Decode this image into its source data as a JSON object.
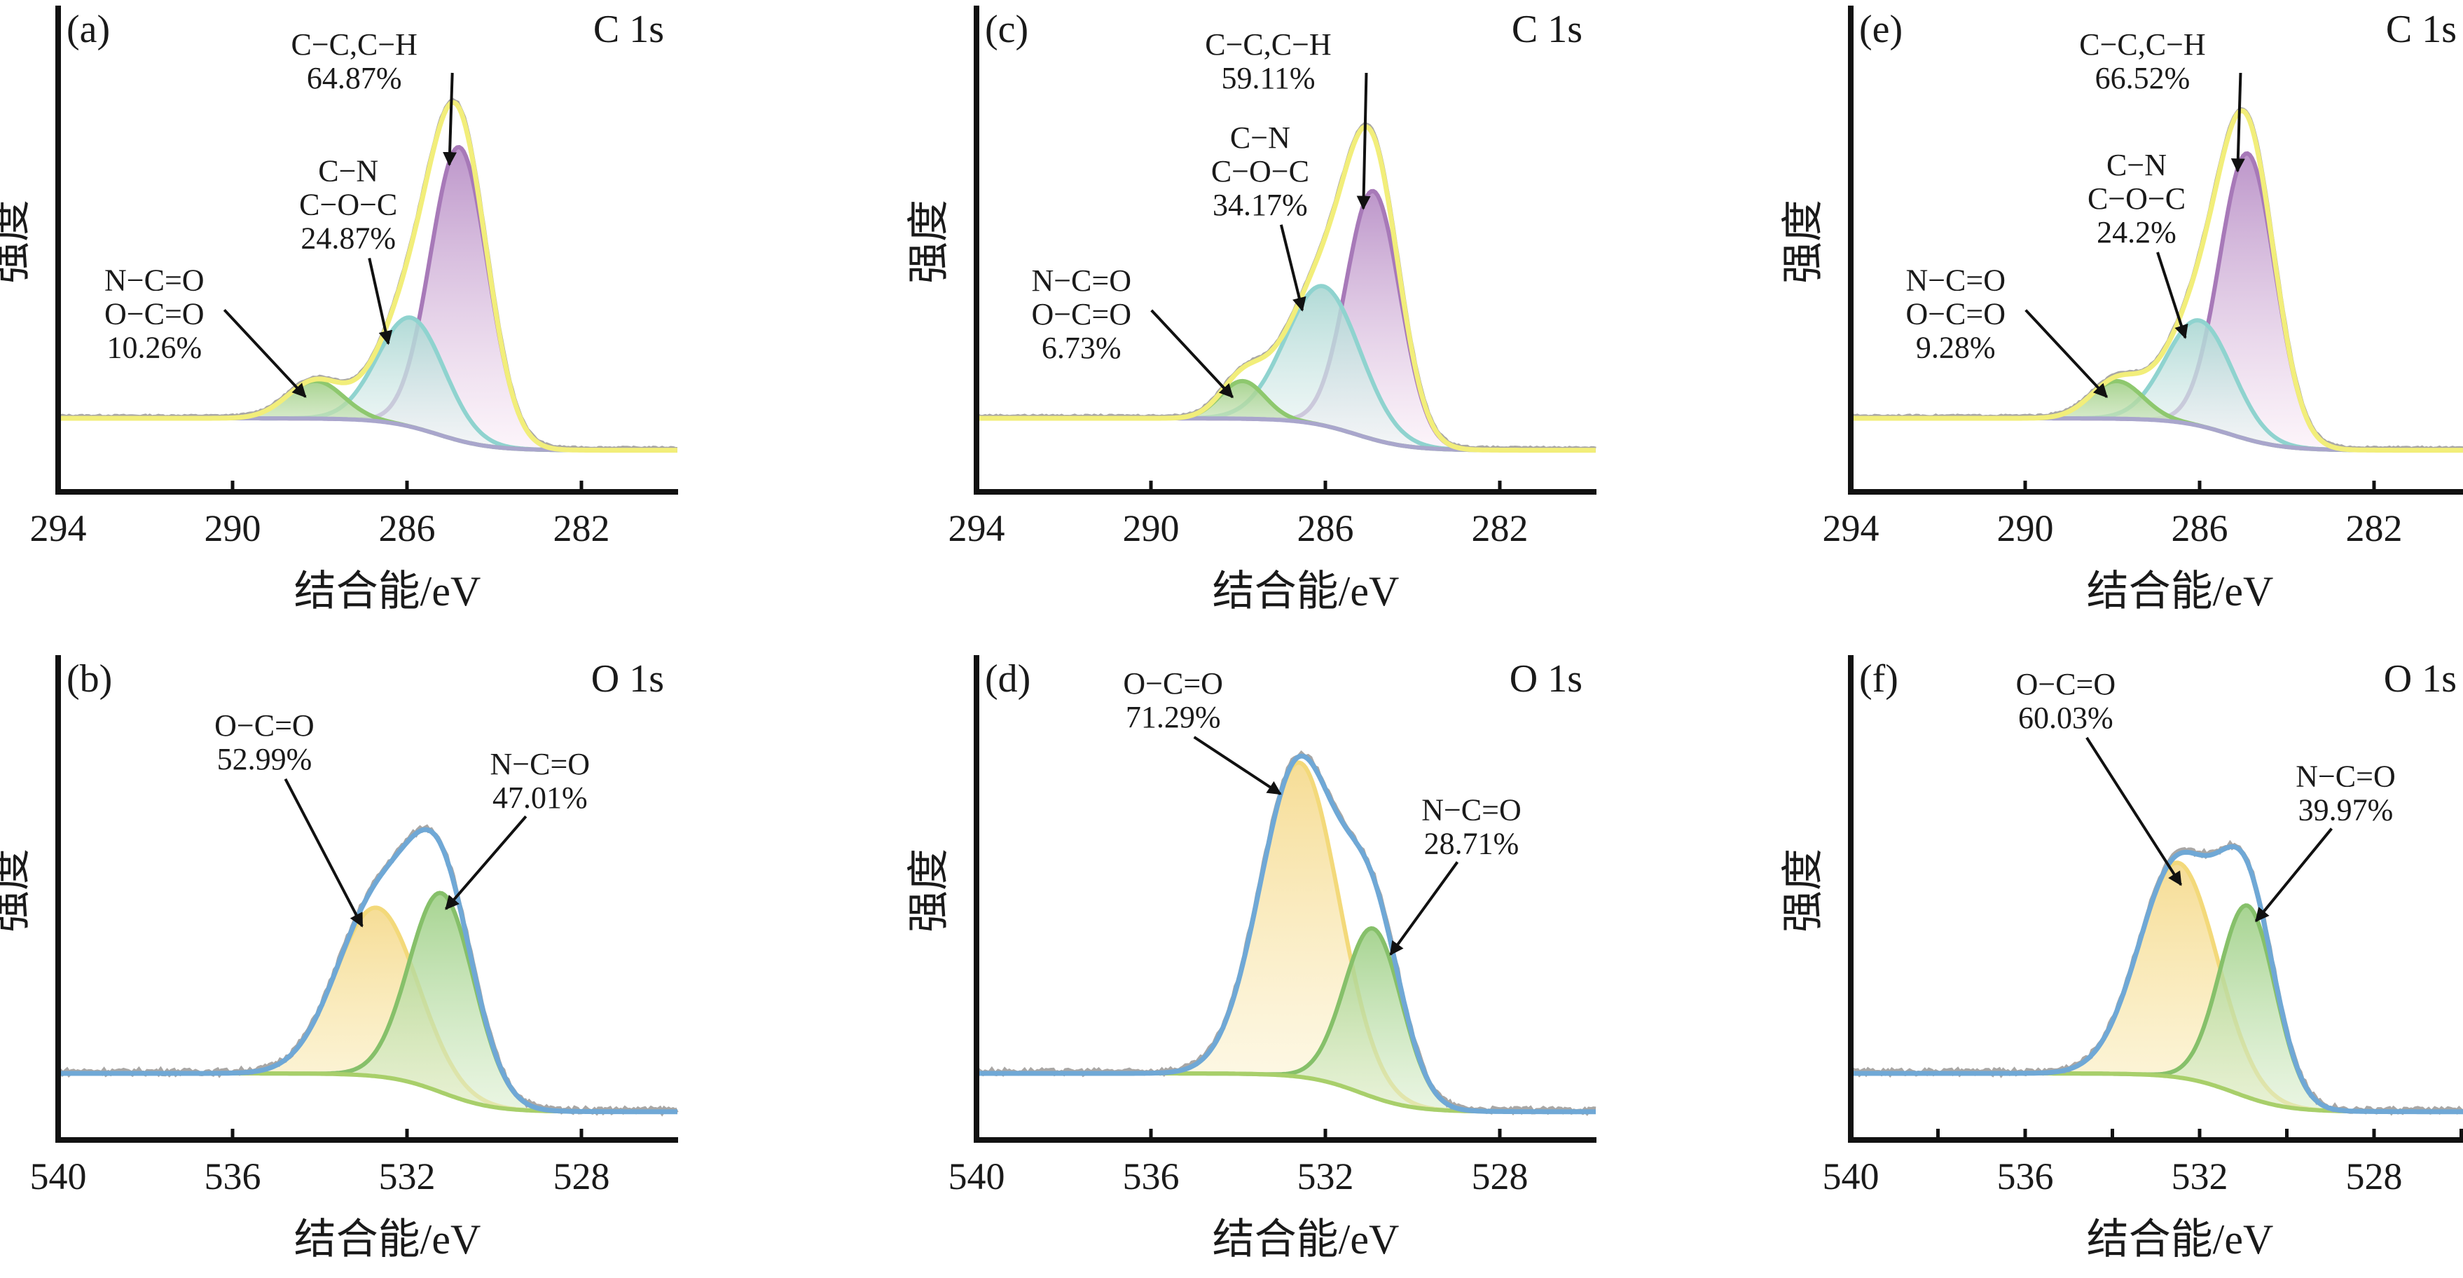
{
  "figure": {
    "ylabel": "强度",
    "xlabel": "结合能/eV"
  },
  "chart_data": [
    {
      "panel": "(a)",
      "type": "area",
      "region": "C 1s",
      "xlabel": "结合能/eV",
      "ylabel": "强度",
      "xlim": [
        294,
        279.8
      ],
      "xticks": [
        294,
        290,
        286,
        282
      ],
      "minor_ticks": false,
      "total_envelope_color": "#f2ee7a",
      "components": [
        {
          "label_lines": [
            "C−C,C−H",
            "64.87%"
          ],
          "percent": 64.87,
          "center": 284.8,
          "height": 0.78,
          "fwhm": 1.55,
          "color": "#a779b8",
          "fill_top": "#b58ac4",
          "fill_bottom": "#fbeef7",
          "label_pos": "top",
          "arrow_to": 284.9
        },
        {
          "label_lines": [
            "C−N",
            "C−O−C",
            "24.87%"
          ],
          "percent": 24.87,
          "center": 285.9,
          "height": 0.29,
          "fwhm": 1.8,
          "color": "#8fd3cf",
          "fill_top": "#a9d6d2",
          "fill_bottom": "#f0f7f6",
          "label_pos": "mid",
          "arrow_to": 286.3
        },
        {
          "label_lines": [
            "N−C=O",
            "O−C=O",
            "10.26%"
          ],
          "percent": 10.26,
          "center": 288.1,
          "height": 0.1,
          "fwhm": 1.5,
          "color": "#8ec86e",
          "fill_top": "#9fcf85",
          "fill_bottom": "#e9f3df",
          "label_pos": "left",
          "arrow_to": 288.2
        }
      ]
    },
    {
      "panel": "(b)",
      "type": "area",
      "region": "O 1s",
      "xlabel": "结合能/eV",
      "ylabel": "强度",
      "xlim": [
        540,
        525.8
      ],
      "xticks": [
        540,
        536,
        532,
        528
      ],
      "minor_ticks": false,
      "total_envelope_color": "#6fa8d6",
      "components": [
        {
          "label_lines": [
            "O−C=O",
            "52.99%"
          ],
          "percent": 52.99,
          "center": 532.7,
          "height": 0.44,
          "fwhm": 2.2,
          "color": "#f3d97a",
          "fill_top": "#f5d98a",
          "fill_bottom": "#fbf1c8",
          "label_pos": "left",
          "arrow_to": 532.9
        },
        {
          "label_lines": [
            "N−C=O",
            "47.01%"
          ],
          "percent": 47.01,
          "center": 531.2,
          "height": 0.52,
          "fwhm": 1.75,
          "color": "#86c06a",
          "fill_top": "#9dcf85",
          "fill_bottom": "#dcefd0",
          "label_pos": "right",
          "arrow_to": 531.3
        }
      ]
    },
    {
      "panel": "(c)",
      "type": "area",
      "region": "C 1s",
      "xlabel": "结合能/eV",
      "ylabel": "强度",
      "xlim": [
        294,
        279.8
      ],
      "xticks": [
        294,
        290,
        286,
        282
      ],
      "minor_ticks": false,
      "total_envelope_color": "#f2ee7a",
      "components": [
        {
          "label_lines": [
            "C−C,C−H",
            "59.11%"
          ],
          "percent": 59.11,
          "center": 284.9,
          "height": 0.66,
          "fwhm": 1.45,
          "color": "#a779b8",
          "fill_top": "#b58ac4",
          "fill_bottom": "#fbeef7",
          "label_pos": "top",
          "arrow_to": 285.0
        },
        {
          "label_lines": [
            "C−N",
            "C−O−C",
            "34.17%"
          ],
          "percent": 34.17,
          "center": 286.05,
          "height": 0.37,
          "fwhm": 2.0,
          "color": "#8fd3cf",
          "fill_top": "#a9d6d2",
          "fill_bottom": "#f0f7f6",
          "label_pos": "mid",
          "arrow_to": 286.4
        },
        {
          "label_lines": [
            "N−C=O",
            "O−C=O",
            "6.73%"
          ],
          "percent": 6.73,
          "center": 287.9,
          "height": 0.1,
          "fwhm": 1.2,
          "color": "#8ec86e",
          "fill_top": "#9fcf85",
          "fill_bottom": "#e9f3df",
          "label_pos": "left",
          "arrow_to": 288.0
        }
      ]
    },
    {
      "panel": "(d)",
      "type": "area",
      "region": "O 1s",
      "xlabel": "结合能/eV",
      "ylabel": "强度",
      "xlim": [
        540,
        525.8
      ],
      "xticks": [
        540,
        536,
        532,
        528
      ],
      "minor_ticks": false,
      "total_envelope_color": "#6fa8d6",
      "components": [
        {
          "label_lines": [
            "O−C=O",
            "71.29%"
          ],
          "percent": 71.29,
          "center": 532.6,
          "height": 0.82,
          "fwhm": 2.1,
          "color": "#f3d97a",
          "fill_top": "#f5d98a",
          "fill_bottom": "#fdf6dc",
          "label_pos": "top-left",
          "arrow_to": 532.9
        },
        {
          "label_lines": [
            "N−C=O",
            "28.71%"
          ],
          "percent": 28.71,
          "center": 530.9,
          "height": 0.44,
          "fwhm": 1.55,
          "color": "#86c06a",
          "fill_top": "#9dcf85",
          "fill_bottom": "#dcefd0",
          "label_pos": "right",
          "arrow_to": 530.7
        }
      ]
    },
    {
      "panel": "(e)",
      "type": "area",
      "region": "C 1s",
      "xlabel": "结合能/eV",
      "ylabel": "强度",
      "xlim": [
        294,
        279.8
      ],
      "xticks": [
        294,
        290,
        286,
        282
      ],
      "minor_ticks": false,
      "total_envelope_color": "#f2ee7a",
      "components": [
        {
          "label_lines": [
            "C−C,C−H",
            "66.52%"
          ],
          "percent": 66.52,
          "center": 284.9,
          "height": 0.76,
          "fwhm": 1.5,
          "color": "#a779b8",
          "fill_top": "#b58ac4",
          "fill_bottom": "#fbeef7",
          "label_pos": "top",
          "arrow_to": 285.0
        },
        {
          "label_lines": [
            "C−N",
            "C−O−C",
            "24.2%"
          ],
          "percent": 24.2,
          "center": 286.0,
          "height": 0.28,
          "fwhm": 1.8,
          "color": "#8fd3cf",
          "fill_top": "#a9d6d2",
          "fill_bottom": "#f0f7f6",
          "label_pos": "mid",
          "arrow_to": 286.2
        },
        {
          "label_lines": [
            "N−C=O",
            "O−C=O",
            "9.28%"
          ],
          "percent": 9.28,
          "center": 287.9,
          "height": 0.1,
          "fwhm": 1.4,
          "color": "#8ec86e",
          "fill_top": "#9fcf85",
          "fill_bottom": "#e9f3df",
          "label_pos": "left",
          "arrow_to": 288.0
        }
      ]
    },
    {
      "panel": "(f)",
      "type": "area",
      "region": "O 1s",
      "xlabel": "结合能/eV",
      "ylabel": "强度",
      "xlim": [
        540,
        525.8
      ],
      "xticks": [
        540,
        536,
        532,
        528
      ],
      "minor_ticks": true,
      "total_envelope_color": "#6fa8d6",
      "components": [
        {
          "label_lines": [
            "O−C=O",
            "60.03%"
          ],
          "percent": 60.03,
          "center": 532.5,
          "height": 0.56,
          "fwhm": 2.1,
          "color": "#f3d97a",
          "fill_top": "#f5d98a",
          "fill_bottom": "#fbf1c8",
          "label_pos": "left",
          "arrow_to": 532.3
        },
        {
          "label_lines": [
            "N−C=O",
            "39.97%"
          ],
          "percent": 39.97,
          "center": 530.9,
          "height": 0.5,
          "fwhm": 1.5,
          "color": "#86c06a",
          "fill_top": "#9dcf85",
          "fill_bottom": "#dcefd0",
          "label_pos": "right",
          "arrow_to": 530.9
        }
      ]
    }
  ]
}
